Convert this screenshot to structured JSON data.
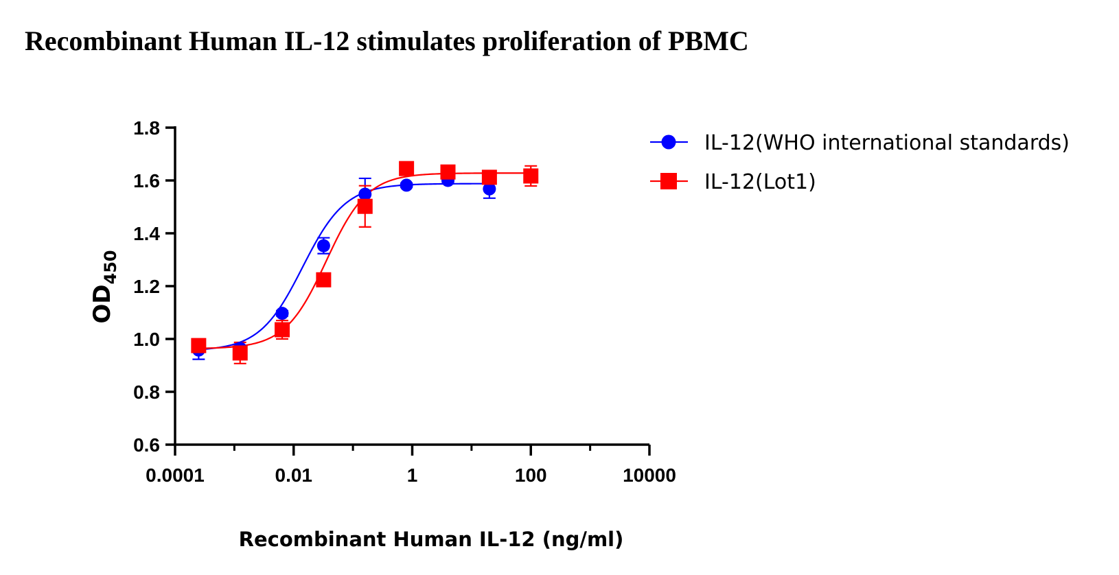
{
  "chart_data": {
    "type": "scatter",
    "title": "Recombinant Human IL-12 stimulates proliferation of PBMC",
    "xlabel": "Recombinant Human IL-12 (ng/ml)",
    "ylabel_main": "OD",
    "ylabel_sub": "450",
    "x_scale": "log",
    "xlim": [
      0.0001,
      10000
    ],
    "ylim": [
      0.6,
      1.8
    ],
    "x_ticks": [
      {
        "value": 0.0001,
        "label": "0.0001"
      },
      {
        "value": 0.01,
        "label": "0.01"
      },
      {
        "value": 1,
        "label": "1"
      },
      {
        "value": 100,
        "label": "100"
      },
      {
        "value": 10000,
        "label": "10000"
      }
    ],
    "y_ticks": [
      {
        "value": 0.6,
        "label": "0.6"
      },
      {
        "value": 0.8,
        "label": "0.8"
      },
      {
        "value": 1.0,
        "label": "1.0"
      },
      {
        "value": 1.2,
        "label": "1.2"
      },
      {
        "value": 1.4,
        "label": "1.4"
      },
      {
        "value": 1.6,
        "label": "1.6"
      },
      {
        "value": 1.8,
        "label": "1.8"
      }
    ],
    "grid": false,
    "legend": "top-right",
    "series": [
      {
        "name": "IL-12(WHO international standards)",
        "color": "#0000ff",
        "marker": "circle",
        "points": [
          {
            "x": 0.00025,
            "y": 0.958,
            "err": 0.035
          },
          {
            "x": 0.00125,
            "y": 0.965,
            "err": 0.01
          },
          {
            "x": 0.0064,
            "y": 1.097,
            "err": 0.01
          },
          {
            "x": 0.032,
            "y": 1.353,
            "err": 0.03
          },
          {
            "x": 0.16,
            "y": 1.548,
            "err": 0.06
          },
          {
            "x": 0.8,
            "y": 1.582,
            "err": 0.008
          },
          {
            "x": 4.0,
            "y": 1.6,
            "err": 0.008
          },
          {
            "x": 20.0,
            "y": 1.568,
            "err": 0.035
          }
        ],
        "fit": {
          "bottom": 0.955,
          "top": 1.588,
          "log_ec50": -1.85,
          "hill": 1.2
        }
      },
      {
        "name": "IL-12(Lot1)",
        "color": "#ff0000",
        "marker": "square",
        "points": [
          {
            "x": 0.00025,
            "y": 0.975,
            "err": 0.025
          },
          {
            "x": 0.00125,
            "y": 0.947,
            "err": 0.04
          },
          {
            "x": 0.0064,
            "y": 1.035,
            "err": 0.035
          },
          {
            "x": 0.032,
            "y": 1.224,
            "err": 0.025
          },
          {
            "x": 0.16,
            "y": 1.502,
            "err": 0.078
          },
          {
            "x": 0.8,
            "y": 1.645,
            "err": 0.012
          },
          {
            "x": 4.0,
            "y": 1.632,
            "err": 0.012
          },
          {
            "x": 20.0,
            "y": 1.612,
            "err": 0.008
          },
          {
            "x": 100.0,
            "y": 1.617,
            "err": 0.038
          }
        ],
        "fit": {
          "bottom": 0.963,
          "top": 1.628,
          "log_ec50": -1.45,
          "hill": 1.25
        }
      }
    ]
  }
}
